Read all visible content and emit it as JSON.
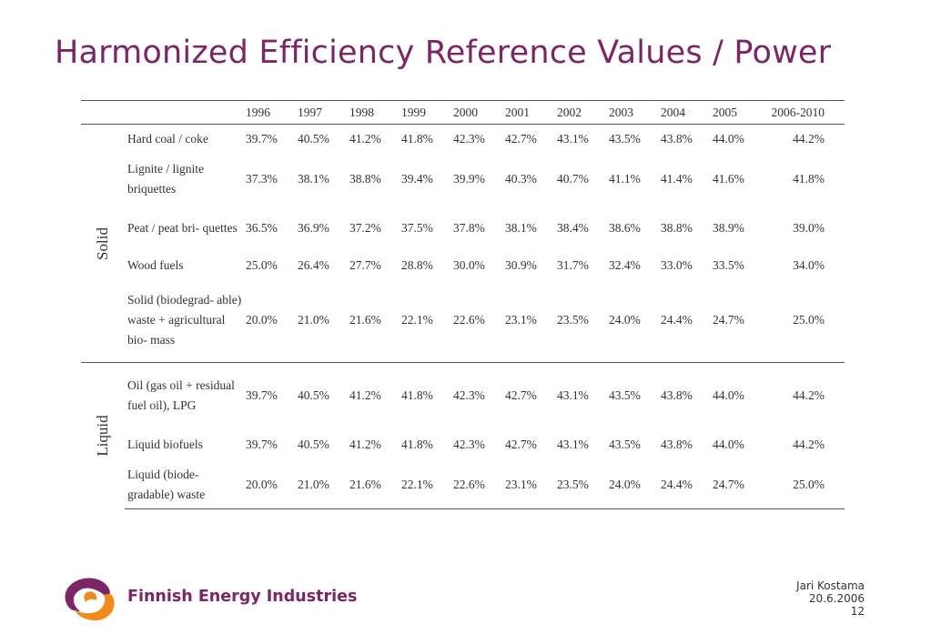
{
  "title": "Harmonized Efficiency Reference Values / Power",
  "table": {
    "columns": [
      "1996",
      "1997",
      "1998",
      "1999",
      "2000",
      "2001",
      "2002",
      "2003",
      "2004",
      "2005",
      "2006-2010"
    ],
    "groups": [
      {
        "label": "Solid",
        "rows": [
          {
            "fuel": "Hard coal / coke",
            "values": [
              "39.7%",
              "40.5%",
              "41.2%",
              "41.8%",
              "42.3%",
              "42.7%",
              "43.1%",
              "43.5%",
              "43.8%",
              "44.0%",
              "44.2%"
            ]
          },
          {
            "fuel": "Lignite / lignite briquettes",
            "values": [
              "37.3%",
              "38.1%",
              "38.8%",
              "39.4%",
              "39.9%",
              "40.3%",
              "40.7%",
              "41.1%",
              "41.4%",
              "41.6%",
              "41.8%"
            ]
          },
          {
            "fuel": "Peat / peat bri- quettes",
            "values": [
              "36.5%",
              "36.9%",
              "37.2%",
              "37.5%",
              "37.8%",
              "38.1%",
              "38.4%",
              "38.6%",
              "38.8%",
              "38.9%",
              "39.0%"
            ]
          },
          {
            "fuel": "Wood fuels",
            "values": [
              "25.0%",
              "26.4%",
              "27.7%",
              "28.8%",
              "30.0%",
              "30.9%",
              "31.7%",
              "32.4%",
              "33.0%",
              "33.5%",
              "34.0%"
            ]
          },
          {
            "fuel": "Solid (biodegrad- able) waste + agricultural bio- mass",
            "values": [
              "20.0%",
              "21.0%",
              "21.6%",
              "22.1%",
              "22.6%",
              "23.1%",
              "23.5%",
              "24.0%",
              "24.4%",
              "24.7%",
              "25.0%"
            ]
          }
        ]
      },
      {
        "label": "Liquid",
        "rows": [
          {
            "fuel": "Oil (gas oil + residual fuel oil), LPG",
            "values": [
              "39.7%",
              "40.5%",
              "41.2%",
              "41.8%",
              "42.3%",
              "42.7%",
              "43.1%",
              "43.5%",
              "43.8%",
              "44.0%",
              "44.2%"
            ]
          },
          {
            "fuel": "Liquid biofuels",
            "values": [
              "39.7%",
              "40.5%",
              "41.2%",
              "41.8%",
              "42.3%",
              "42.7%",
              "43.1%",
              "43.5%",
              "43.8%",
              "44.0%",
              "44.2%"
            ]
          },
          {
            "fuel": "Liquid (biode- gradable) waste",
            "values": [
              "20.0%",
              "21.0%",
              "21.6%",
              "22.1%",
              "22.6%",
              "23.1%",
              "23.5%",
              "24.0%",
              "24.4%",
              "24.7%",
              "25.0%"
            ]
          }
        ]
      }
    ]
  },
  "logo": {
    "text": "Finnish Energy Industries",
    "color_purple": "#7b2667",
    "color_orange": "#f08a1c",
    "icon": "finnish-energy-logo-icon"
  },
  "footer": {
    "author": "Jari Kostama",
    "date": "20.6.2006",
    "page": "12"
  }
}
